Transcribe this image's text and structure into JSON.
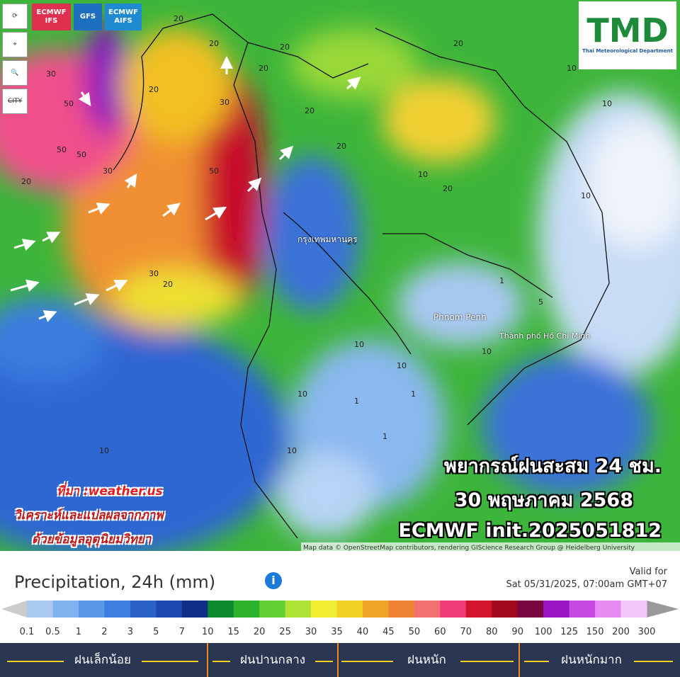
{
  "toolbar": {
    "models": [
      "ECMWF IFS",
      "GFS",
      "ECMWF AIFS"
    ],
    "city": "CITY"
  },
  "logo": {
    "title": "TMD",
    "subtitle": "Thai Meteorological Department"
  },
  "map": {
    "places": [
      "กรุงเทพมหานคร",
      "Phnom Penh",
      "Thành phố Hồ Chí Minh"
    ],
    "contour_labels": [
      30,
      50,
      50,
      50,
      30,
      20,
      20,
      20,
      20,
      50,
      30,
      20,
      20,
      20,
      20,
      20,
      30,
      20,
      10,
      10,
      20,
      20,
      10,
      10,
      10,
      10,
      1,
      1,
      1,
      10,
      10,
      10,
      5,
      1,
      10
    ],
    "attribution": "Map data © OpenStreetMap contributors, rendering GIScience Research Group @ Heidelberg University"
  },
  "overlay": {
    "headline": [
      "พยากรณ์ฝนสะสม 24 ชม.",
      "30 พฤษภาคม 2568",
      "ECMWF init.2025051812"
    ],
    "source": [
      "ที่มา :weather.us",
      "วิเคราะห์และแปลผลจากภาพ",
      "ด้วยข้อมูลอุตุนิยมวิทยา"
    ]
  },
  "legend": {
    "title": "Precipitation, 24h (mm)",
    "valid_label": "Valid for",
    "valid_time": "Sat 05/31/2025, 07:00am GMT+07",
    "labels": [
      0.1,
      0.5,
      1,
      2,
      3,
      5,
      7,
      10,
      15,
      20,
      25,
      30,
      35,
      40,
      45,
      50,
      60,
      70,
      80,
      90,
      100,
      125,
      150,
      200,
      300
    ],
    "colors": [
      "#a9cbf2",
      "#80b2ee",
      "#5c98e8",
      "#3d7fe0",
      "#2b62c9",
      "#1a48ae",
      "#0f2f88",
      "#0a8a2c",
      "#2cb22c",
      "#62d034",
      "#aee234",
      "#f2ee34",
      "#f2d024",
      "#f0a426",
      "#f08434",
      "#f27070",
      "#ee3c78",
      "#d2142c",
      "#a0081e",
      "#7a0840",
      "#9a14c6",
      "#c84ae4",
      "#e68af2",
      "#f2c8f8"
    ],
    "categories": [
      "ฝนเล็กน้อย",
      "ฝนปานกลาง",
      "ฝนหนัก",
      "ฝนหนักมาก"
    ]
  }
}
